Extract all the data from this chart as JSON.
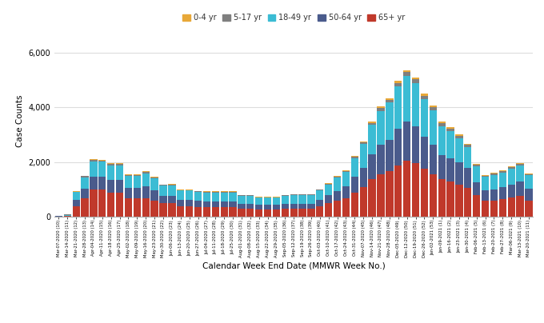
{
  "title": "",
  "xlabel": "Calendar Week End Date (MMWR Week No.)",
  "ylabel": "Case Counts",
  "colors": {
    "65+ yr": "#C0392B",
    "50-64 yr": "#4A5B8C",
    "18-49 yr": "#3BBCD4",
    "5-17 yr": "#7F7F7F",
    "0-4 yr": "#E8A838"
  },
  "legend_labels": [
    "0-4 yr",
    "5-17 yr",
    "18-49 yr",
    "50-64 yr",
    "65+ yr"
  ],
  "stack_order": [
    "65+ yr",
    "50-64 yr",
    "18-49 yr",
    "5-17 yr",
    "0-4 yr"
  ],
  "xlabels": [
    "Mar-07-2020 (10)",
    "Mar-14-2020 (11)",
    "Mar-21-2020 (12)",
    "Mar-28-2020 (13)",
    "Apr-04-2020 (14)",
    "Apr-11-2020 (15)",
    "Apr-18-2020 (16)",
    "Apr-25-2020 (17)",
    "May-02-2020 (18)",
    "May-09-2020 (19)",
    "May-16-2020 (20)",
    "May-23-2020 (21)",
    "May-30-2020 (22)",
    "Jun-06-2020 (23)",
    "Jun-13-2020 (24)",
    "Jun-20-2020 (25)",
    "Jun-27-2020 (26)",
    "Jul-04-2020 (27)",
    "Jul-11-2020 (28)",
    "Jul-18-2020 (29)",
    "Jul-25-2020 (30)",
    "Aug-01-2020 (31)",
    "Aug-08-2020 (32)",
    "Aug-15-2020 (33)",
    "Aug-22-2020 (34)",
    "Aug-29-2020 (35)",
    "Sep-05-2020 (36)",
    "Sep-12-2020 (37)",
    "Sep-19-2020 (38)",
    "Sep-26-2020 (39)",
    "Oct-03-2020 (40)",
    "Oct-10-2020 (41)",
    "Oct-17-2020 (42)",
    "Oct-24-2020 (43)",
    "Oct-31-2020 (44)",
    "Nov-07-2020 (45)",
    "Nov-14-2020 (46)",
    "Nov-21-2020 (47)",
    "Nov-28-2020 (48)",
    "Dec-05-2020 (49)",
    "Dec-12-2020 (50)",
    "Dec-19-2020 (51)",
    "Dec-26-2020 (52)",
    "Jan-02-2021 (53)",
    "Jan-09-2021 (1)",
    "Jan-16-2021 (2)",
    "Jan-23-2021 (3)",
    "Jan-30-2021 (4)",
    "Feb-06-2021 (5)",
    "Feb-13-2021 (6)",
    "Feb-20-2021 (7)",
    "Feb-27-2021 (8)",
    "Mar-06-2021 (9)",
    "Mar-13-2021 (10)",
    "Mar-20-2021 (11)"
  ],
  "data": {
    "0-4 yr": [
      2,
      5,
      15,
      25,
      30,
      28,
      28,
      28,
      22,
      22,
      25,
      20,
      18,
      18,
      18,
      18,
      18,
      15,
      15,
      15,
      15,
      12,
      12,
      12,
      12,
      12,
      12,
      12,
      12,
      12,
      15,
      18,
      20,
      22,
      28,
      35,
      45,
      55,
      60,
      70,
      80,
      80,
      70,
      70,
      60,
      60,
      55,
      45,
      35,
      28,
      30,
      35,
      35,
      35,
      28
    ],
    "5-17 yr": [
      3,
      8,
      25,
      45,
      55,
      50,
      50,
      50,
      40,
      40,
      45,
      38,
      30,
      28,
      22,
      22,
      22,
      18,
      18,
      18,
      18,
      18,
      18,
      15,
      15,
      15,
      18,
      18,
      18,
      18,
      22,
      28,
      32,
      38,
      48,
      60,
      80,
      100,
      110,
      125,
      145,
      145,
      125,
      115,
      105,
      95,
      85,
      72,
      55,
      45,
      50,
      58,
      58,
      58,
      45
    ],
    "18-49 yr": [
      8,
      40,
      280,
      420,
      560,
      560,
      530,
      530,
      440,
      440,
      490,
      440,
      370,
      380,
      340,
      340,
      340,
      330,
      330,
      330,
      330,
      290,
      290,
      270,
      270,
      270,
      285,
      310,
      310,
      310,
      350,
      390,
      490,
      540,
      690,
      870,
      1080,
      1260,
      1360,
      1560,
      1650,
      1580,
      1380,
      1280,
      1080,
      980,
      880,
      780,
      580,
      490,
      540,
      540,
      570,
      590,
      490
    ],
    "50-64 yr": [
      4,
      15,
      230,
      330,
      480,
      470,
      470,
      470,
      380,
      380,
      420,
      370,
      280,
      280,
      230,
      230,
      230,
      220,
      220,
      220,
      220,
      185,
      185,
      165,
      165,
      165,
      185,
      185,
      185,
      185,
      230,
      285,
      355,
      420,
      580,
      720,
      920,
      1060,
      1160,
      1350,
      1450,
      1360,
      1170,
      1060,
      870,
      870,
      820,
      720,
      480,
      385,
      385,
      430,
      480,
      530,
      430
    ],
    "65+ yr": [
      3,
      8,
      380,
      680,
      980,
      980,
      870,
      870,
      670,
      670,
      680,
      580,
      480,
      480,
      380,
      380,
      335,
      335,
      335,
      335,
      335,
      285,
      285,
      260,
      260,
      260,
      290,
      290,
      290,
      290,
      385,
      490,
      580,
      680,
      870,
      1070,
      1360,
      1560,
      1660,
      1870,
      2050,
      1950,
      1760,
      1560,
      1370,
      1270,
      1170,
      1060,
      780,
      580,
      590,
      640,
      690,
      740,
      590
    ]
  },
  "ylim": [
    0,
    7000
  ],
  "yticks": [
    0,
    2000,
    4000,
    6000
  ],
  "background_color": "#FFFFFF",
  "grid_color": "#DDDDDD"
}
